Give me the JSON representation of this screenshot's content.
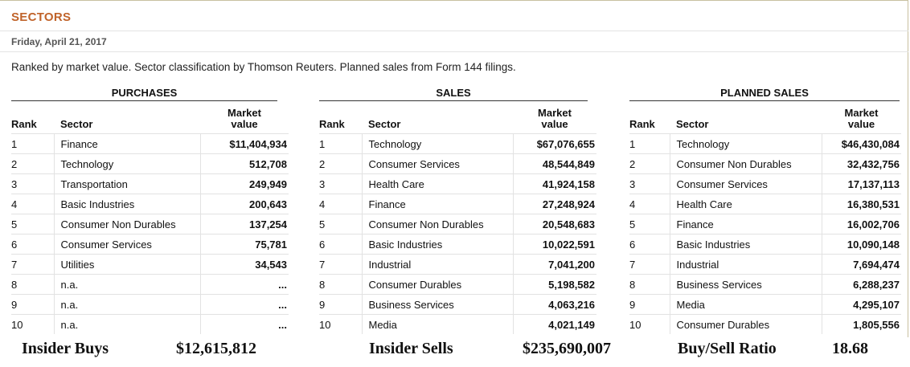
{
  "header": {
    "title": "SECTORS",
    "date": "Friday, April 21, 2017",
    "description": "Ranked by market value. Sector classification by Thomson Reuters. Planned sales from Form 144 filings."
  },
  "columns": {
    "rank": "Rank",
    "sector": "Sector",
    "value_line1": "Market",
    "value_line2": "value"
  },
  "purchases": {
    "title": "PURCHASES",
    "rows": [
      {
        "rank": "1",
        "sector": "Finance",
        "value": "$11,404,934"
      },
      {
        "rank": "2",
        "sector": "Technology",
        "value": "512,708"
      },
      {
        "rank": "3",
        "sector": "Transportation",
        "value": "249,949"
      },
      {
        "rank": "4",
        "sector": "Basic Industries",
        "value": "200,643"
      },
      {
        "rank": "5",
        "sector": "Consumer Non Durables",
        "value": "137,254"
      },
      {
        "rank": "6",
        "sector": "Consumer Services",
        "value": "75,781"
      },
      {
        "rank": "7",
        "sector": "Utilities",
        "value": "34,543"
      },
      {
        "rank": "8",
        "sector": "n.a.",
        "value": "..."
      },
      {
        "rank": "9",
        "sector": "n.a.",
        "value": "..."
      },
      {
        "rank": "10",
        "sector": "n.a.",
        "value": "..."
      }
    ]
  },
  "sales": {
    "title": "SALES",
    "rows": [
      {
        "rank": "1",
        "sector": "Technology",
        "value": "$67,076,655"
      },
      {
        "rank": "2",
        "sector": "Consumer Services",
        "value": "48,544,849"
      },
      {
        "rank": "3",
        "sector": "Health Care",
        "value": "41,924,158"
      },
      {
        "rank": "4",
        "sector": "Finance",
        "value": "27,248,924"
      },
      {
        "rank": "5",
        "sector": "Consumer Non Durables",
        "value": "20,548,683"
      },
      {
        "rank": "6",
        "sector": "Basic Industries",
        "value": "10,022,591"
      },
      {
        "rank": "7",
        "sector": "Industrial",
        "value": "7,041,200"
      },
      {
        "rank": "8",
        "sector": "Consumer Durables",
        "value": "5,198,582"
      },
      {
        "rank": "9",
        "sector": "Business Services",
        "value": "4,063,216"
      },
      {
        "rank": "10",
        "sector": "Media",
        "value": "4,021,149"
      }
    ]
  },
  "planned_sales": {
    "title": "PLANNED SALES",
    "rows": [
      {
        "rank": "1",
        "sector": "Technology",
        "value": "$46,430,084"
      },
      {
        "rank": "2",
        "sector": "Consumer Non Durables",
        "value": "32,432,756"
      },
      {
        "rank": "3",
        "sector": "Consumer Services",
        "value": "17,137,113"
      },
      {
        "rank": "4",
        "sector": "Health Care",
        "value": "16,380,531"
      },
      {
        "rank": "5",
        "sector": "Finance",
        "value": "16,002,706"
      },
      {
        "rank": "6",
        "sector": "Basic Industries",
        "value": "10,090,148"
      },
      {
        "rank": "7",
        "sector": "Industrial",
        "value": "7,694,474"
      },
      {
        "rank": "8",
        "sector": "Business Services",
        "value": "6,288,237"
      },
      {
        "rank": "9",
        "sector": "Media",
        "value": "4,295,107"
      },
      {
        "rank": "10",
        "sector": "Consumer Durables",
        "value": "1,805,556"
      }
    ]
  },
  "footer": {
    "buys_label": "Insider Buys",
    "buys_value": "$12,615,812",
    "sells_label": "Insider Sells",
    "sells_value": "$235,690,007",
    "ratio_label": "Buy/Sell Ratio",
    "ratio_value": "18.68"
  },
  "colors": {
    "title": "#c0632a"
  }
}
